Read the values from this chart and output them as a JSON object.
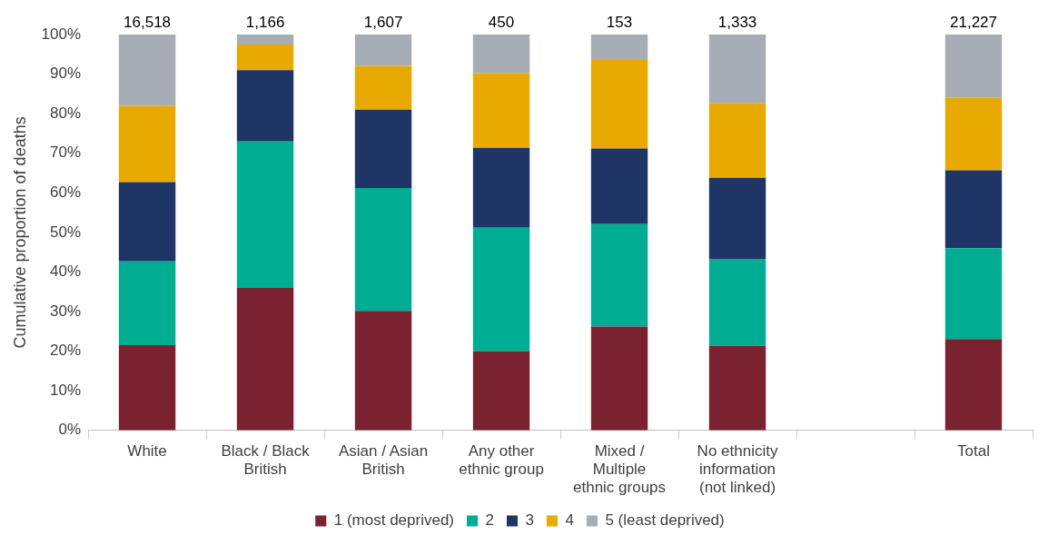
{
  "chart_data": {
    "type": "bar",
    "stacked": true,
    "ylabel": "Cumulative proportion of deaths",
    "categories": [
      "White",
      "Black / Black British",
      "Asian / Asian British",
      "Any other ethnic group",
      "Mixed / Multiple ethnic groups",
      "No ethnicity information (not linked)",
      null,
      "Total"
    ],
    "series": [
      {
        "name": "1 (most deprived)",
        "color": "#7b2230",
        "values": [
          21.5,
          36,
          30.2,
          20,
          26.2,
          21.4,
          null,
          23.1
        ]
      },
      {
        "name": "2",
        "color": "#00ad93",
        "values": [
          21.2,
          37,
          31,
          31.2,
          25.9,
          21.9,
          null,
          22.9
        ]
      },
      {
        "name": "3",
        "color": "#1f3566",
        "values": [
          20,
          18,
          19.8,
          20.2,
          19.1,
          20.5,
          null,
          19.7
        ]
      },
      {
        "name": "4",
        "color": "#e8a900",
        "values": [
          19.3,
          6.5,
          11.1,
          18.8,
          22.4,
          18.8,
          null,
          18.3
        ]
      },
      {
        "name": "5 (least deprived)",
        "color": "#a6adb4",
        "values": [
          18,
          2.5,
          7.9,
          9.8,
          6.4,
          17.4,
          null,
          16
        ]
      }
    ],
    "ylim": [
      0,
      100
    ],
    "yticks": [
      {
        "value": 0,
        "label": "0%"
      },
      {
        "value": 10,
        "label": "10%"
      },
      {
        "value": 20,
        "label": "20%"
      },
      {
        "value": 30,
        "label": "30%"
      },
      {
        "value": 40,
        "label": "40%"
      },
      {
        "value": 50,
        "label": "50%"
      },
      {
        "value": 60,
        "label": "60%"
      },
      {
        "value": 70,
        "label": "70%"
      },
      {
        "value": 80,
        "label": "80%"
      },
      {
        "value": 90,
        "label": "90%"
      },
      {
        "value": 100,
        "label": "100%"
      }
    ],
    "annotations": [
      {
        "text": "16,518",
        "x": "White",
        "y": 100
      },
      {
        "text": "1,166",
        "x": "Black / Black British",
        "y": 100
      },
      {
        "text": "1,607",
        "x": "Asian / Asian British",
        "y": 100
      },
      {
        "text": "450",
        "x": "Any other ethnic group",
        "y": 100
      },
      {
        "text": "153",
        "x": "Mixed / Multiple ethnic groups",
        "y": 100
      },
      {
        "text": "1,333",
        "x": "No ethnicity information (not linked)",
        "y": 100
      },
      {
        "text": "21,227",
        "x": "Total",
        "y": 100
      }
    ],
    "grid": false,
    "legend": "bottom"
  }
}
